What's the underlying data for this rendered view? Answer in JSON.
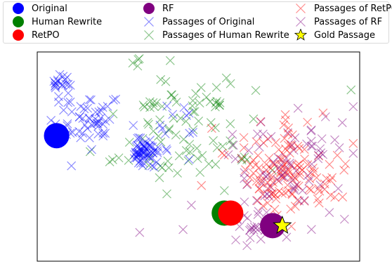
{
  "chart_data": {
    "type": "scatter",
    "title": "",
    "xlabel": "",
    "ylabel": "",
    "axes_ticks": "hidden",
    "grid": false,
    "legend_position": "top",
    "legend": [
      {
        "label": "Original",
        "marker": "circle",
        "color": "#0000ff"
      },
      {
        "label": "Human Rewrite",
        "marker": "circle",
        "color": "#008000"
      },
      {
        "label": "RetPO",
        "marker": "circle",
        "color": "#ff0000"
      },
      {
        "label": "RF",
        "marker": "circle",
        "color": "#800080"
      },
      {
        "label": "Passages of Original",
        "marker": "x",
        "color": "#0000ff"
      },
      {
        "label": "Passages of Human Rewrite",
        "marker": "x",
        "color": "#008000"
      },
      {
        "label": "Passages of RetPO",
        "marker": "x",
        "color": "#ff0000"
      },
      {
        "label": "Passages of RF",
        "marker": "x",
        "color": "#800080"
      },
      {
        "label": "Gold Passage",
        "marker": "star",
        "color": "#ffff00"
      }
    ],
    "xlim": [
      0,
      100
    ],
    "ylim": [
      0,
      100
    ],
    "points": {
      "Original": [
        [
          6,
          60
        ]
      ],
      "Human Rewrite": [
        [
          58,
          23
        ]
      ],
      "RetPO": [
        [
          60,
          23
        ]
      ],
      "RF": [
        [
          73,
          17
        ]
      ],
      "Gold Passage": [
        [
          76,
          17
        ]
      ]
    },
    "clusters": {
      "Passages of Original": [
        {
          "cx": 7,
          "cy": 85,
          "sx": 1.5,
          "sy": 2,
          "n": 18
        },
        {
          "cx": 15,
          "cy": 66,
          "sx": 5,
          "sy": 7,
          "n": 55
        },
        {
          "cx": 33,
          "cy": 52,
          "sx": 2.5,
          "sy": 3,
          "n": 60
        },
        {
          "cx": 40,
          "cy": 68,
          "sx": 9,
          "sy": 8,
          "n": 12
        }
      ],
      "Passages of Human Rewrite": [
        {
          "cx": 45,
          "cy": 63,
          "sx": 12,
          "sy": 13,
          "n": 90
        },
        {
          "cx": 31,
          "cy": 95,
          "sx": 0.8,
          "sy": 1,
          "n": 4
        },
        {
          "cx": 58,
          "cy": 85,
          "sx": 1,
          "sy": 1,
          "n": 3
        }
      ],
      "Passages of RetPO": [
        {
          "cx": 78,
          "cy": 40,
          "sx": 8,
          "sy": 10,
          "n": 110
        },
        {
          "cx": 70,
          "cy": 55,
          "sx": 9,
          "sy": 9,
          "n": 25
        }
      ],
      "Passages of RF": [
        {
          "cx": 78,
          "cy": 45,
          "sx": 10,
          "sy": 15,
          "n": 75
        },
        {
          "cx": 68,
          "cy": 18,
          "sx": 5,
          "sy": 5,
          "n": 22
        },
        {
          "cx": 42,
          "cy": 20,
          "sx": 5,
          "sy": 4,
          "n": 3
        }
      ]
    }
  }
}
